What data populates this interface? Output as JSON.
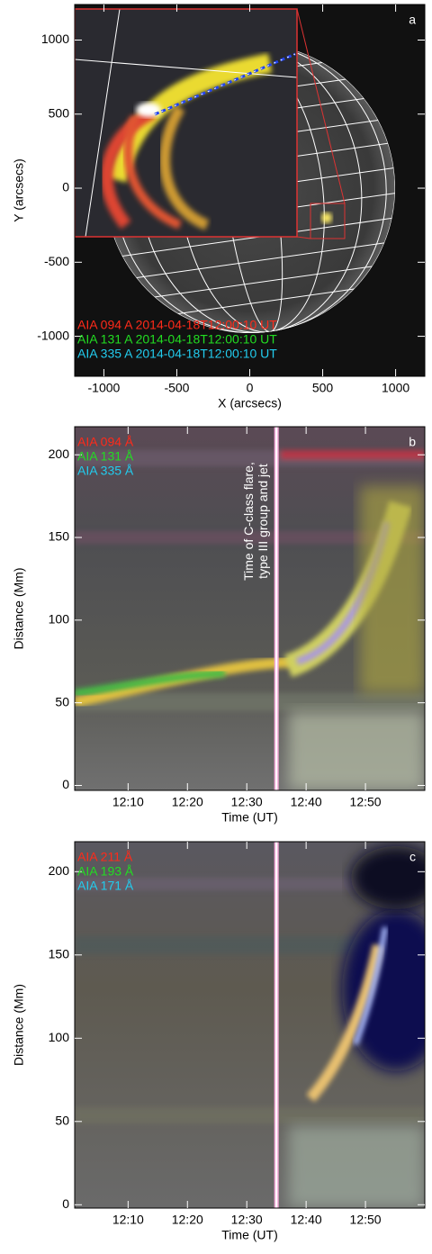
{
  "chart_data": [
    {
      "type": "image",
      "label": "a",
      "x_label": "X (arcsecs)",
      "y_label": "Y (arcsecs)",
      "xlim": [
        -1200,
        1200
      ],
      "ylim": [
        -1270,
        1240
      ],
      "xticks": [
        -1000,
        -500,
        0,
        500,
        1000
      ],
      "yticks": [
        -1000,
        -500,
        0,
        500,
        1000
      ],
      "annotations": [
        {
          "text": "AIA 094 A 2014-04-18T12:00:10 UT",
          "color": "#ff2a1a"
        },
        {
          "text": "AIA 131 A 2014-04-18T12:00:10 UT",
          "color": "#22dd22"
        },
        {
          "text": "AIA 335 A 2014-04-18T12:00:10 UT",
          "color": "#22ccee"
        }
      ]
    },
    {
      "type": "image",
      "label": "b",
      "x_label": "Time (UT)",
      "y_label": "Distance (Mm)",
      "xlim": [
        1,
        60
      ],
      "ylim": [
        -3,
        217
      ],
      "xticks": [
        {
          "value": 10,
          "label": "12:10"
        },
        {
          "value": 20,
          "label": "12:20"
        },
        {
          "value": 30,
          "label": "12:30"
        },
        {
          "value": 40,
          "label": "12:40"
        },
        {
          "value": 50,
          "label": "12:50"
        }
      ],
      "yticks": [
        0,
        50,
        100,
        150,
        200
      ],
      "vline": 35,
      "vline_text": [
        "Time of C-class flare,",
        "type III group and jet"
      ],
      "annotations": [
        {
          "text": "AIA 094 Å",
          "color": "#ff2a1a"
        },
        {
          "text": "AIA 131 Å",
          "color": "#22dd22"
        },
        {
          "text": "AIA 335 Å",
          "color": "#22ccee"
        }
      ]
    },
    {
      "type": "image",
      "label": "c",
      "x_label": "Time (UT)",
      "y_label": "Distance (Mm)",
      "xlim": [
        1,
        60
      ],
      "ylim": [
        -2,
        218
      ],
      "xticks": [
        {
          "value": 10,
          "label": "12:10"
        },
        {
          "value": 20,
          "label": "12:20"
        },
        {
          "value": 30,
          "label": "12:30"
        },
        {
          "value": 40,
          "label": "12:40"
        },
        {
          "value": 50,
          "label": "12:50"
        }
      ],
      "yticks": [
        0,
        50,
        100,
        150,
        200
      ],
      "vline": 35,
      "annotations": [
        {
          "text": "AIA 211 Å",
          "color": "#ff2a1a"
        },
        {
          "text": "AIA 193 Å",
          "color": "#22dd22"
        },
        {
          "text": "AIA 171 Å",
          "color": "#22ccee"
        }
      ]
    }
  ]
}
